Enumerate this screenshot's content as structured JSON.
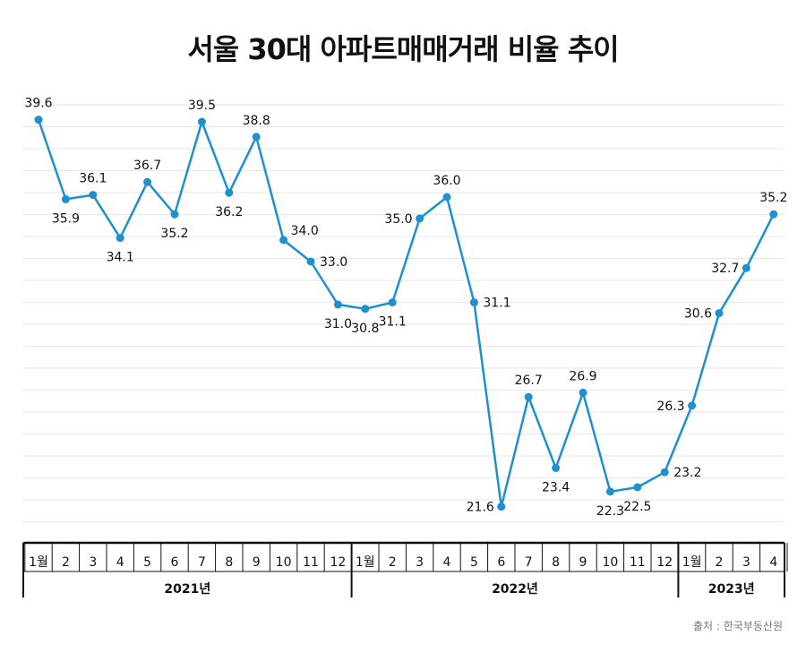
{
  "chart_data": {
    "type": "line",
    "title": "서울 30대 아파트매매거래 비율 추이",
    "source": "출처 : 한국부동산원",
    "x_tick_labels": [
      "1월",
      "2",
      "3",
      "4",
      "5",
      "6",
      "7",
      "8",
      "9",
      "10",
      "11",
      "12",
      "1월",
      "2",
      "3",
      "4",
      "5",
      "6",
      "7",
      "8",
      "9",
      "10",
      "11",
      "12",
      "1월",
      "2",
      "3",
      "4"
    ],
    "years": [
      {
        "label": "2021년",
        "months": 12
      },
      {
        "label": "2022년",
        "months": 12
      },
      {
        "label": "2023년",
        "months": 4
      }
    ],
    "series": [
      {
        "values": [
          39.6,
          35.9,
          36.1,
          34.1,
          36.7,
          35.2,
          39.5,
          36.2,
          38.8,
          34.0,
          33.0,
          31.0,
          30.8,
          31.1,
          35.0,
          36.0,
          31.1,
          21.6,
          26.7,
          23.4,
          26.9,
          22.3,
          22.5,
          23.2,
          26.3,
          30.6,
          32.7,
          35.2
        ],
        "data_labels": [
          "39.6",
          "35.9",
          "36.1",
          "34.1",
          "36.7",
          "35.2",
          "39.5",
          "36.2",
          "38.8",
          "34.0",
          "33.0",
          "31.0",
          "30.8",
          "31.1",
          "35.0",
          "36.0",
          "31.1",
          "21.6",
          "26.7",
          "23.4",
          "26.9",
          "22.3",
          "22.5",
          "23.2",
          "26.3",
          "30.6",
          "32.7",
          "35.2"
        ],
        "label_positions": [
          "above",
          "below",
          "above",
          "below",
          "above",
          "below",
          "above",
          "below",
          "above",
          "above-right",
          "right",
          "below",
          "below",
          "below",
          "left",
          "above",
          "right",
          "left",
          "above",
          "below",
          "above",
          "below",
          "below",
          "right",
          "left",
          "left",
          "left",
          "above"
        ]
      }
    ],
    "ylim": [
      20.5,
      41.0
    ],
    "gridlines": 20,
    "xlabel": "",
    "ylabel": "",
    "colors": {
      "line": "#1e90d0",
      "grid": "#e6e6e6",
      "axis": "#111111"
    }
  }
}
